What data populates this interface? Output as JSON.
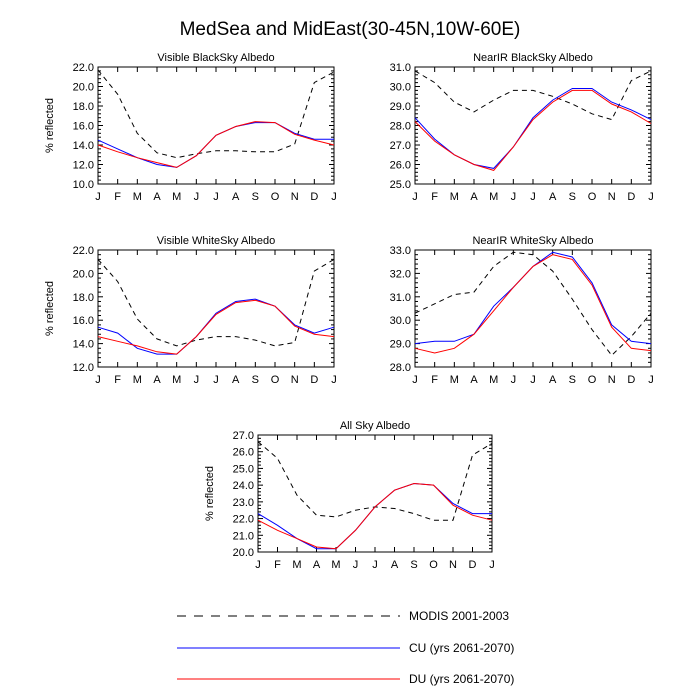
{
  "figure": {
    "title": "MedSea and MidEast(30-45N,10W-60E)"
  },
  "legend": {
    "placement": "bottom",
    "entries": [
      {
        "key": "modis",
        "label": "MODIS 2001-2003",
        "color": "#000000",
        "dash": "dashed"
      },
      {
        "key": "cu",
        "label": "CU (yrs 2061-2070)",
        "color": "#0000ff",
        "dash": "solid"
      },
      {
        "key": "du",
        "label": "DU (yrs 2061-2070)",
        "color": "#ff0000",
        "dash": "solid"
      }
    ]
  },
  "chart_data": [
    {
      "type": "line",
      "title": "Visible BlackSky Albedo",
      "xlabel": "",
      "ylabel": "% reflected",
      "categories": [
        "J",
        "F",
        "M",
        "A",
        "M",
        "J",
        "J",
        "A",
        "S",
        "O",
        "N",
        "D",
        "J"
      ],
      "ylim": [
        10.0,
        22.0
      ],
      "yticks": [
        "10.0",
        "12.0",
        "14.0",
        "16.0",
        "18.0",
        "20.0",
        "22.0"
      ],
      "series": [
        {
          "name": "MODIS 2001-2003",
          "values": [
            21.7,
            19.2,
            15.2,
            13.2,
            12.7,
            13.1,
            13.4,
            13.4,
            13.3,
            13.3,
            14.1,
            20.4,
            21.5
          ]
        },
        {
          "name": "CU (yrs 2061-2070)",
          "values": [
            14.5,
            13.6,
            12.7,
            12.0,
            11.7,
            12.9,
            15.0,
            15.9,
            16.3,
            16.3,
            15.2,
            14.6,
            14.6
          ]
        },
        {
          "name": "DU (yrs 2061-2070)",
          "values": [
            14.0,
            13.3,
            12.7,
            12.2,
            11.7,
            12.9,
            15.0,
            15.9,
            16.4,
            16.3,
            15.1,
            14.5,
            14.0
          ]
        }
      ]
    },
    {
      "type": "line",
      "title": "NearIR BlackSky Albedo",
      "xlabel": "",
      "ylabel": "",
      "categories": [
        "J",
        "F",
        "M",
        "A",
        "M",
        "J",
        "J",
        "A",
        "S",
        "O",
        "N",
        "D",
        "J"
      ],
      "ylim": [
        25.0,
        31.0
      ],
      "yticks": [
        "25.0",
        "26.0",
        "27.0",
        "28.0",
        "29.0",
        "30.0",
        "31.0"
      ],
      "series": [
        {
          "name": "MODIS 2001-2003",
          "values": [
            30.8,
            30.2,
            29.2,
            28.7,
            29.3,
            29.8,
            29.8,
            29.5,
            29.1,
            28.6,
            28.3,
            30.3,
            30.8
          ]
        },
        {
          "name": "CU (yrs 2061-2070)",
          "values": [
            28.4,
            27.3,
            26.5,
            26.0,
            25.8,
            26.9,
            28.4,
            29.3,
            29.9,
            29.9,
            29.2,
            28.8,
            28.3
          ]
        },
        {
          "name": "DU (yrs 2061-2070)",
          "values": [
            28.2,
            27.2,
            26.5,
            26.0,
            25.7,
            26.9,
            28.3,
            29.2,
            29.8,
            29.8,
            29.1,
            28.7,
            28.1
          ]
        }
      ]
    },
    {
      "type": "line",
      "title": "Visible WhiteSky Albedo",
      "xlabel": "",
      "ylabel": "% reflected",
      "categories": [
        "J",
        "F",
        "M",
        "A",
        "M",
        "J",
        "J",
        "A",
        "S",
        "O",
        "N",
        "D",
        "J"
      ],
      "ylim": [
        12.0,
        22.0
      ],
      "yticks": [
        "12.0",
        "14.0",
        "16.0",
        "18.0",
        "20.0",
        "22.0"
      ],
      "series": [
        {
          "name": "MODIS 2001-2003",
          "values": [
            21.2,
            19.3,
            16.1,
            14.4,
            13.8,
            14.3,
            14.6,
            14.6,
            14.3,
            13.8,
            14.1,
            20.2,
            21.2
          ]
        },
        {
          "name": "CU (yrs 2061-2070)",
          "values": [
            15.4,
            14.9,
            13.6,
            13.1,
            13.1,
            14.6,
            16.6,
            17.6,
            17.8,
            17.2,
            15.6,
            14.9,
            15.4
          ]
        },
        {
          "name": "DU (yrs 2061-2070)",
          "values": [
            14.6,
            14.2,
            13.8,
            13.3,
            13.1,
            14.6,
            16.5,
            17.5,
            17.7,
            17.2,
            15.5,
            14.8,
            14.6
          ]
        }
      ]
    },
    {
      "type": "line",
      "title": "NearIR WhiteSky Albedo",
      "xlabel": "",
      "ylabel": "",
      "categories": [
        "J",
        "F",
        "M",
        "A",
        "M",
        "J",
        "J",
        "A",
        "S",
        "O",
        "N",
        "D",
        "J"
      ],
      "ylim": [
        28.0,
        33.0
      ],
      "yticks": [
        "28.0",
        "29.0",
        "30.0",
        "31.0",
        "32.0",
        "33.0"
      ],
      "series": [
        {
          "name": "MODIS 2001-2003",
          "values": [
            30.3,
            30.7,
            31.1,
            31.2,
            32.3,
            32.9,
            32.8,
            32.1,
            30.9,
            29.6,
            28.5,
            29.3,
            30.3
          ]
        },
        {
          "name": "CU (yrs 2061-2070)",
          "values": [
            29.0,
            29.1,
            29.1,
            29.4,
            30.6,
            31.4,
            32.3,
            32.9,
            32.7,
            31.6,
            29.8,
            29.1,
            29.0
          ]
        },
        {
          "name": "DU (yrs 2061-2070)",
          "values": [
            28.8,
            28.6,
            28.8,
            29.4,
            30.4,
            31.4,
            32.3,
            32.8,
            32.6,
            31.5,
            29.7,
            28.8,
            28.7
          ]
        }
      ]
    },
    {
      "type": "line",
      "title": "All Sky Albedo",
      "xlabel": "",
      "ylabel": "% reflected",
      "categories": [
        "J",
        "F",
        "M",
        "A",
        "M",
        "J",
        "J",
        "A",
        "S",
        "O",
        "N",
        "D",
        "J"
      ],
      "ylim": [
        20.0,
        27.0
      ],
      "yticks": [
        "20.0",
        "21.0",
        "22.0",
        "23.0",
        "24.0",
        "25.0",
        "26.0",
        "27.0"
      ],
      "series": [
        {
          "name": "MODIS 2001-2003",
          "values": [
            26.6,
            25.6,
            23.4,
            22.2,
            22.1,
            22.5,
            22.7,
            22.6,
            22.3,
            21.9,
            21.9,
            25.8,
            26.5
          ]
        },
        {
          "name": "CU (yrs 2061-2070)",
          "values": [
            22.3,
            21.6,
            20.8,
            20.2,
            20.2,
            21.3,
            22.7,
            23.7,
            24.1,
            24.0,
            22.9,
            22.3,
            22.3
          ]
        },
        {
          "name": "DU (yrs 2061-2070)",
          "values": [
            21.9,
            21.3,
            20.8,
            20.3,
            20.2,
            21.3,
            22.7,
            23.7,
            24.1,
            24.0,
            22.8,
            22.2,
            21.9
          ]
        }
      ]
    }
  ]
}
